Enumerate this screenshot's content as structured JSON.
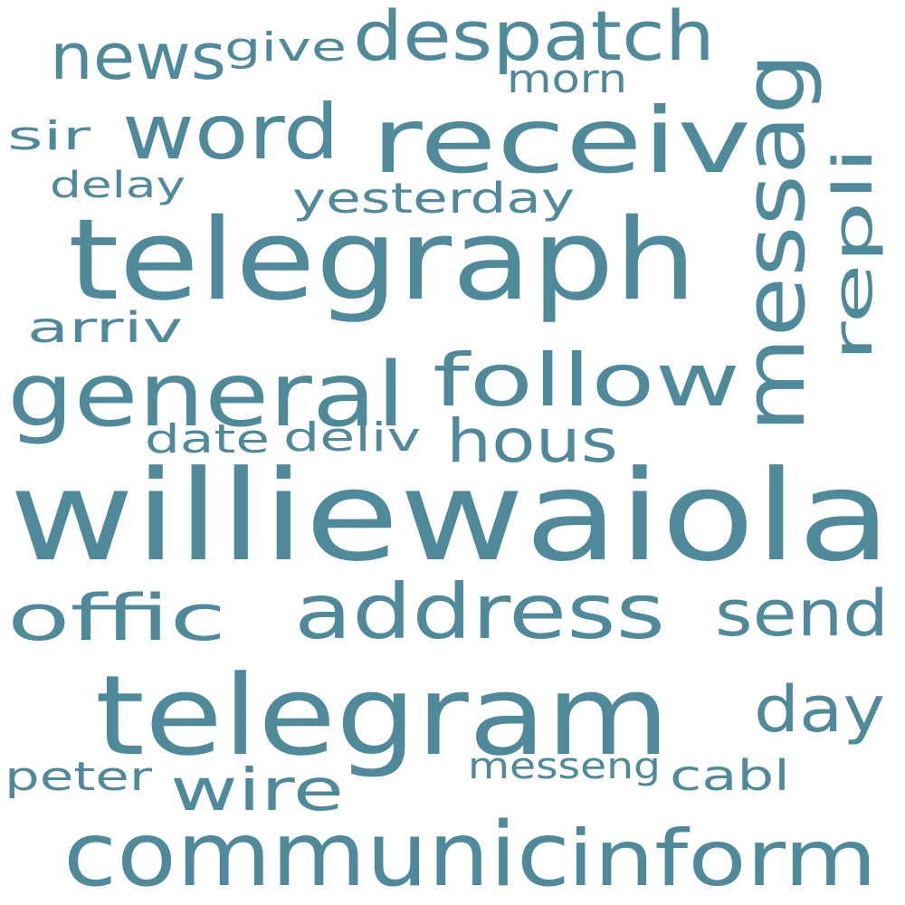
{
  "wordcloud": {
    "color": "#4f8a9b",
    "background": "#ffffff",
    "words": [
      {
        "text": "williewaiola"
      },
      {
        "text": "telegraph"
      },
      {
        "text": "telegram"
      },
      {
        "text": "communic"
      },
      {
        "text": "receiv"
      },
      {
        "text": "general"
      },
      {
        "text": "messag"
      },
      {
        "text": "address"
      },
      {
        "text": "inform"
      },
      {
        "text": "follow"
      },
      {
        "text": "despatch"
      },
      {
        "text": "word"
      },
      {
        "text": "offic"
      },
      {
        "text": "news"
      },
      {
        "text": "send"
      },
      {
        "text": "repli"
      },
      {
        "text": "day"
      },
      {
        "text": "hous"
      },
      {
        "text": "wire"
      },
      {
        "text": "yesterday"
      },
      {
        "text": "give"
      },
      {
        "text": "morn"
      },
      {
        "text": "arriv"
      },
      {
        "text": "cabl"
      },
      {
        "text": "messeng"
      },
      {
        "text": "peter"
      },
      {
        "text": "delay"
      },
      {
        "text": "date"
      },
      {
        "text": "deliv"
      },
      {
        "text": "sir"
      }
    ]
  }
}
